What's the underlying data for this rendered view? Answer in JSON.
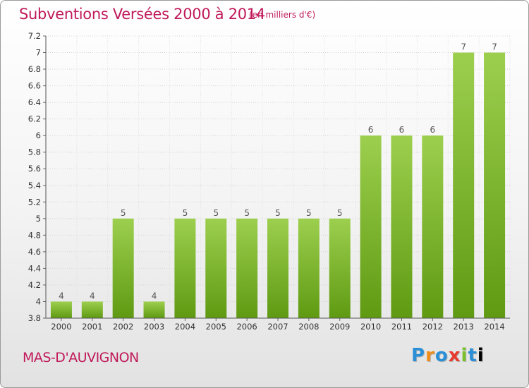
{
  "header": {
    "title": "Subventions Versées 2000 à 2014",
    "subtitle": "(en milliers d'€)"
  },
  "footer": {
    "commune": "MAS-D'AUVIGNON",
    "logo_text": "Proxiti"
  },
  "colors": {
    "accent": "#c0195a",
    "bar_top": "#9ccf4e",
    "bar_bottom": "#5f9a12"
  },
  "chart_data": {
    "type": "bar",
    "title": "Subventions Versées 2000 à 2014",
    "subtitle": "(en milliers d'€)",
    "xlabel": "",
    "ylabel": "",
    "categories": [
      "2000",
      "2001",
      "2002",
      "2003",
      "2004",
      "2005",
      "2006",
      "2007",
      "2008",
      "2009",
      "2010",
      "2011",
      "2012",
      "2013",
      "2014"
    ],
    "values": [
      4,
      4,
      5,
      4,
      5,
      5,
      5,
      5,
      5,
      5,
      6,
      6,
      6,
      7,
      7
    ],
    "bar_values": [
      4.0,
      4.0,
      5.0,
      4.0,
      5.0,
      5.0,
      5.0,
      5.0,
      5.0,
      5.0,
      6.0,
      6.0,
      6.0,
      7.0,
      7.0
    ],
    "y_ticks": [
      3.8,
      4.0,
      4.2,
      4.4,
      4.6,
      4.8,
      5.0,
      5.2,
      5.4,
      5.6,
      5.8,
      6.0,
      6.2,
      6.4,
      6.6,
      6.8,
      7.0,
      7.2
    ],
    "y_tick_labels": [
      "3.8",
      "4",
      "4.2",
      "4.4",
      "4.6",
      "4.8",
      "5",
      "5.2",
      "5.4",
      "5.6",
      "5.8",
      "6",
      "6.2",
      "6.4",
      "6.6",
      "6.8",
      "7",
      "7.2"
    ],
    "ylim": [
      3.8,
      7.2
    ],
    "grid": true,
    "legend": "none"
  }
}
